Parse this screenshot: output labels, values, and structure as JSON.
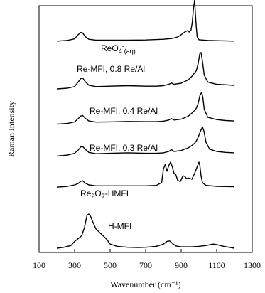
{
  "chart_data": {
    "type": "line",
    "xlabel": "Wavenumber (cm⁻¹)",
    "ylabel": "Raman Intensity",
    "xlim": [
      100,
      1300
    ],
    "x_ticks": [
      "100",
      "300",
      "500",
      "700",
      "900",
      "1100",
      "1300"
    ],
    "y_ticks": false,
    "grid": false,
    "legend": "labels placed beside each trace",
    "series": [
      {
        "name": "ReO4-(aq)",
        "label_main": "ReO",
        "label_sub": "4",
        "label_sup": "-",
        "label_sub2": "(aq)",
        "baseline": 0.91,
        "x": [
          200,
          260,
          300,
          320,
          335,
          345,
          360,
          380,
          420,
          500,
          600,
          700,
          800,
          850,
          880,
          900,
          920,
          935,
          945,
          955,
          962,
          970,
          976,
          980,
          985,
          990,
          1000,
          1050,
          1100,
          1200
        ],
        "y": [
          0.0,
          0.003,
          0.01,
          0.028,
          0.038,
          0.036,
          0.02,
          0.008,
          0.004,
          0.004,
          0.004,
          0.005,
          0.008,
          0.012,
          0.018,
          0.028,
          0.04,
          0.046,
          0.04,
          0.048,
          0.08,
          0.15,
          0.18,
          0.12,
          0.06,
          0.02,
          0.006,
          0.003,
          0.002,
          0.0
        ]
      },
      {
        "name": "Re-MFI, 0.8 Re/Al",
        "label_main": "Re-MFI, 0.8 Re/Al",
        "baseline": 0.7,
        "x": [
          200,
          260,
          300,
          320,
          335,
          345,
          360,
          380,
          420,
          500,
          600,
          700,
          760,
          800,
          830,
          845,
          860,
          900,
          940,
          960,
          975,
          985,
          995,
          1005,
          1012,
          1020,
          1030,
          1050,
          1100,
          1150,
          1200
        ],
        "y": [
          0.0,
          0.003,
          0.01,
          0.03,
          0.046,
          0.048,
          0.032,
          0.016,
          0.01,
          0.012,
          0.014,
          0.012,
          0.012,
          0.014,
          0.02,
          0.026,
          0.02,
          0.025,
          0.04,
          0.055,
          0.07,
          0.08,
          0.11,
          0.155,
          0.16,
          0.12,
          0.06,
          0.03,
          0.02,
          0.018,
          0.015
        ]
      },
      {
        "name": "Re-MFI, 0.4 Re/Al",
        "label_main": "Re-MFI, 0.4 Re/Al",
        "baseline": 0.545,
        "x": [
          200,
          260,
          300,
          320,
          335,
          345,
          360,
          380,
          420,
          500,
          600,
          700,
          760,
          800,
          830,
          845,
          860,
          900,
          940,
          960,
          975,
          985,
          995,
          1005,
          1015,
          1022,
          1030,
          1050,
          1100,
          1150,
          1200
        ],
        "y": [
          0.0,
          0.003,
          0.01,
          0.024,
          0.036,
          0.038,
          0.026,
          0.014,
          0.009,
          0.01,
          0.012,
          0.011,
          0.011,
          0.013,
          0.018,
          0.024,
          0.018,
          0.022,
          0.035,
          0.048,
          0.06,
          0.07,
          0.09,
          0.125,
          0.14,
          0.118,
          0.065,
          0.03,
          0.02,
          0.016,
          0.014
        ]
      },
      {
        "name": "Re-MFI, 0.3 Re/Al",
        "label_main": "Re-MFI, 0.3 Re/Al",
        "baseline": 0.405,
        "x": [
          200,
          260,
          300,
          320,
          335,
          345,
          360,
          380,
          420,
          500,
          600,
          700,
          760,
          800,
          830,
          845,
          860,
          900,
          940,
          960,
          975,
          985,
          995,
          1010,
          1020,
          1028,
          1040,
          1060,
          1100,
          1150,
          1200
        ],
        "y": [
          0.0,
          0.004,
          0.012,
          0.026,
          0.04,
          0.042,
          0.03,
          0.016,
          0.01,
          0.012,
          0.014,
          0.012,
          0.012,
          0.014,
          0.02,
          0.028,
          0.02,
          0.024,
          0.036,
          0.046,
          0.056,
          0.066,
          0.082,
          0.112,
          0.128,
          0.11,
          0.06,
          0.03,
          0.02,
          0.016,
          0.014
        ]
      },
      {
        "name": "Re2O7-HMFI",
        "label_main": "Re",
        "label_sub": "2",
        "label_main2": "O",
        "label_sub3": "7",
        "label_main3": "-HMFI",
        "baseline": 0.268,
        "x": [
          200,
          260,
          300,
          320,
          335,
          345,
          360,
          380,
          420,
          500,
          600,
          700,
          760,
          790,
          800,
          810,
          820,
          830,
          840,
          850,
          860,
          870,
          880,
          895,
          910,
          920,
          930,
          945,
          960,
          975,
          985,
          995,
          1000,
          1005,
          1012,
          1020,
          1040,
          1100,
          1200
        ],
        "y": [
          0.0,
          0.004,
          0.01,
          0.016,
          0.026,
          0.028,
          0.018,
          0.01,
          0.006,
          0.006,
          0.006,
          0.006,
          0.008,
          0.02,
          0.08,
          0.1,
          0.07,
          0.095,
          0.11,
          0.09,
          0.06,
          0.055,
          0.03,
          0.025,
          0.05,
          0.048,
          0.038,
          0.04,
          0.035,
          0.06,
          0.08,
          0.1,
          0.11,
          0.095,
          0.05,
          0.02,
          0.008,
          0.004,
          0.002
        ]
      },
      {
        "name": "H-MFI",
        "label_main": "H-MFI",
        "baseline": 0.0,
        "x": [
          200,
          240,
          280,
          300,
          320,
          340,
          355,
          370,
          380,
          390,
          400,
          420,
          440,
          460,
          480,
          500,
          540,
          600,
          660,
          700,
          760,
          800,
          820,
          835,
          850,
          870,
          900,
          960,
          1000,
          1040,
          1080,
          1100,
          1140,
          1200
        ],
        "y": [
          0.0,
          0.004,
          0.012,
          0.03,
          0.042,
          0.055,
          0.09,
          0.145,
          0.15,
          0.14,
          0.12,
          0.085,
          0.07,
          0.055,
          0.04,
          0.018,
          0.008,
          0.004,
          0.003,
          0.004,
          0.008,
          0.018,
          0.03,
          0.032,
          0.022,
          0.01,
          0.006,
          0.006,
          0.008,
          0.012,
          0.018,
          0.016,
          0.008,
          0.0
        ]
      }
    ]
  }
}
